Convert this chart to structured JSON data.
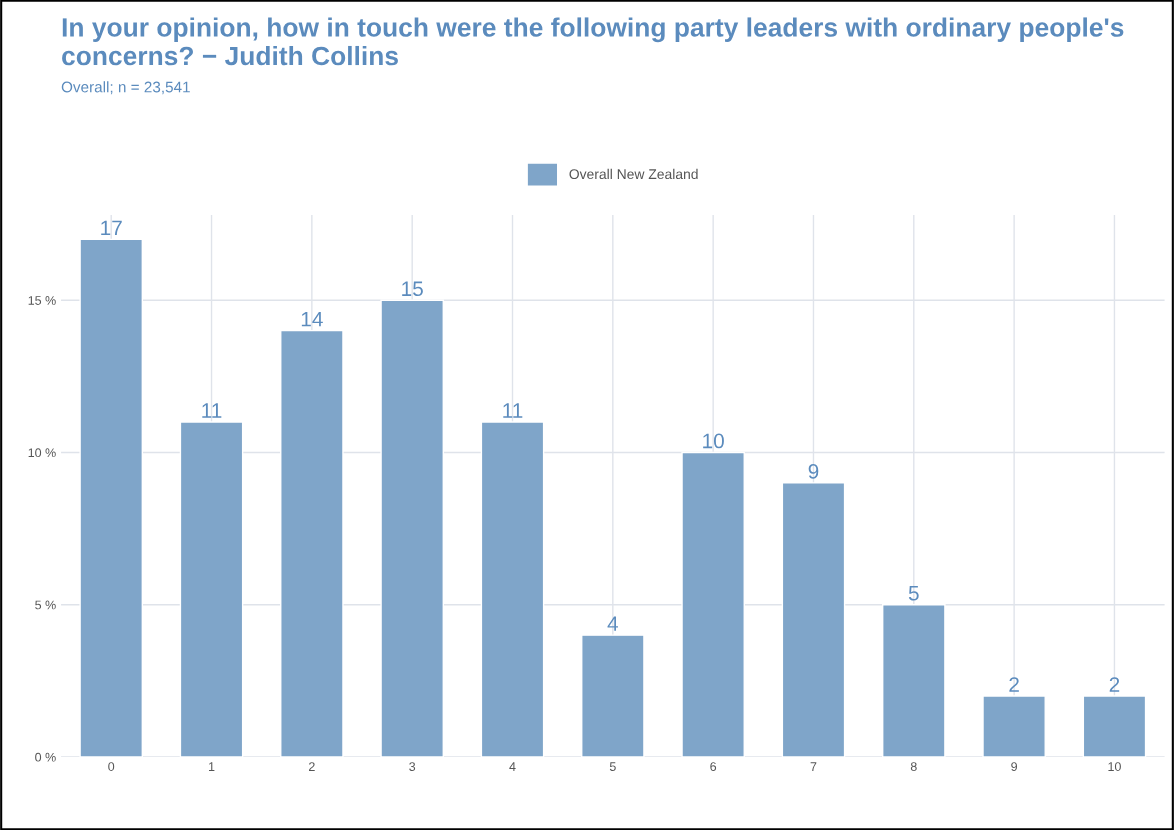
{
  "chart_data": {
    "type": "bar",
    "title": "In your opinion, how in touch were the following party leaders with ordinary people's concerns? − Judith Collins",
    "subtitle": "Overall; n = 23,541",
    "categories": [
      "0",
      "1",
      "2",
      "3",
      "4",
      "5",
      "6",
      "7",
      "8",
      "9",
      "10"
    ],
    "series": [
      {
        "name": "Overall New Zealand",
        "color": "#7fa5c9",
        "values": [
          17,
          11,
          14,
          15,
          11,
          4,
          10,
          9,
          5,
          2,
          2
        ]
      }
    ],
    "ylim": [
      0,
      17.8
    ],
    "yticks": [
      {
        "value": 0,
        "label": "0 %"
      },
      {
        "value": 5,
        "label": "5 %"
      },
      {
        "value": 10,
        "label": "10 %"
      },
      {
        "value": 15,
        "label": "15 %"
      }
    ],
    "grid": true,
    "legend": "top",
    "data_labels": true
  }
}
